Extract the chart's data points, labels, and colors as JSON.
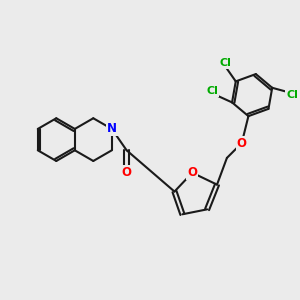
{
  "bg_color": "#ebebeb",
  "bond_color": "#1a1a1a",
  "bond_width": 1.5,
  "atom_colors": {
    "N": "#0000ff",
    "O": "#ff0000",
    "Cl": "#00aa00",
    "C": "#1a1a1a"
  },
  "font_size_atom": 8.5,
  "font_size_cl": 8.0,
  "xlim": [
    0,
    10
  ],
  "ylim": [
    0,
    10
  ]
}
